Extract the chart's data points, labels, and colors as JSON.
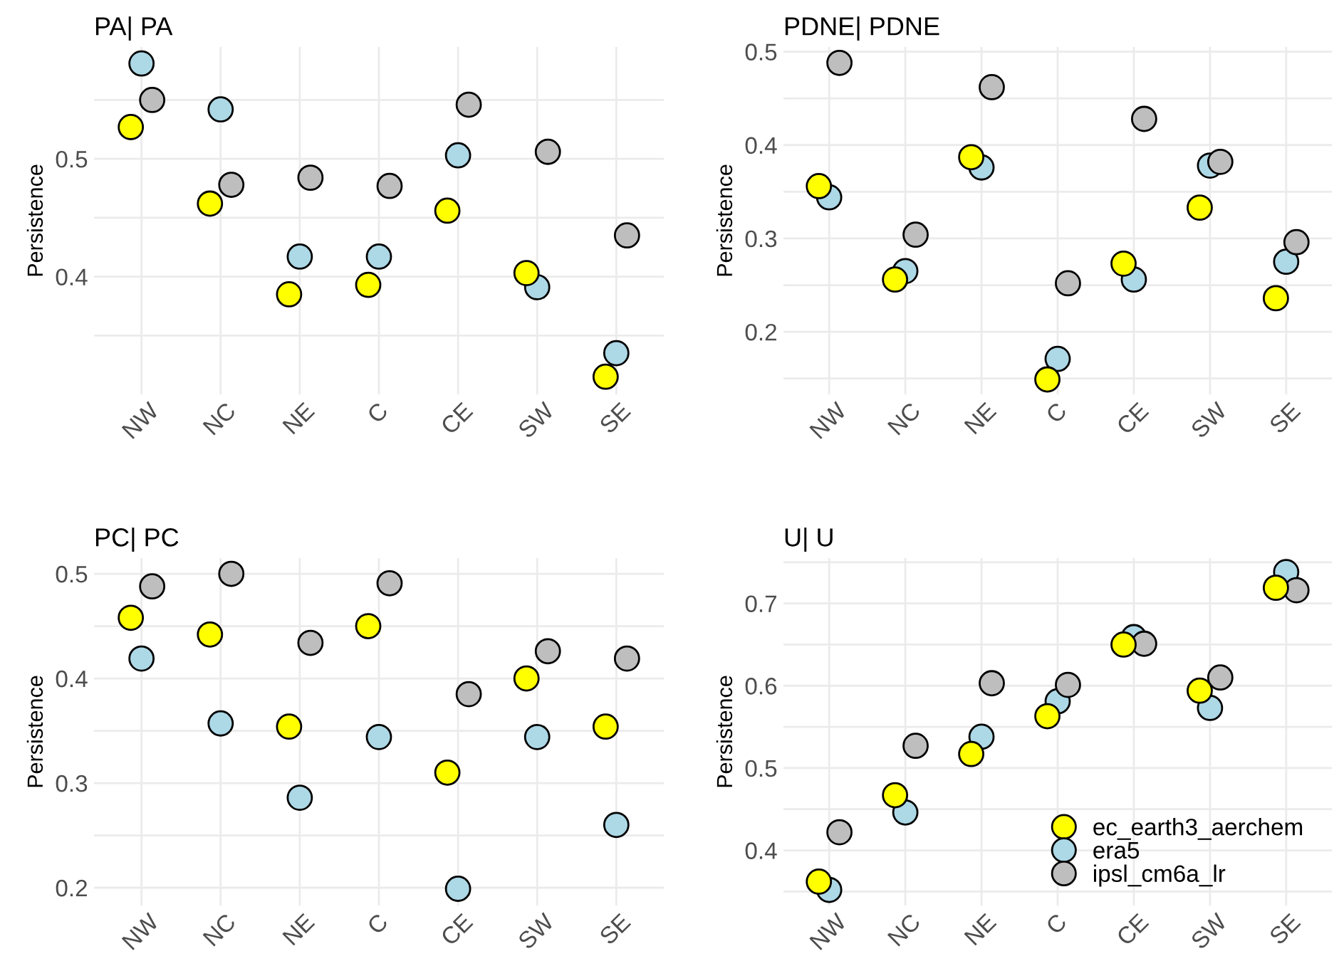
{
  "chart_data": [
    {
      "type": "scatter",
      "title": "PA| PA",
      "ylabel": "Persistence",
      "categories": [
        "NW",
        "NC",
        "NE",
        "C",
        "CE",
        "SW",
        "SE"
      ],
      "ylim": [
        0.3,
        0.595
      ],
      "yticks": [
        {
          "value": 0.35,
          "label": null
        },
        0.4,
        {
          "value": 0.45,
          "label": null
        },
        0.5,
        {
          "value": 0.55,
          "label": null
        }
      ],
      "grid": true,
      "marker": "circle",
      "legend": false,
      "series": [
        {
          "color": "#ffff00",
          "values": [
            0.527,
            0.462,
            0.385,
            0.393,
            0.456,
            0.403,
            0.315
          ]
        },
        {
          "color": "#add8e6",
          "values": [
            0.581,
            0.542,
            0.417,
            0.417,
            0.503,
            0.391,
            0.335
          ]
        },
        {
          "color": "#bebebe",
          "values": [
            0.55,
            0.478,
            0.484,
            0.477,
            0.546,
            0.506,
            0.435
          ]
        }
      ]
    },
    {
      "type": "scatter",
      "title": "PDNE| PDNE",
      "ylabel": "Persistence",
      "categories": [
        "NW",
        "NC",
        "NE",
        "C",
        "CE",
        "SW",
        "SE"
      ],
      "ylim": [
        0.133,
        0.505
      ],
      "yticks": [
        {
          "value": 0.15,
          "label": null
        },
        0.2,
        {
          "value": 0.25,
          "label": null
        },
        0.3,
        {
          "value": 0.35,
          "label": null
        },
        0.4,
        {
          "value": 0.45,
          "label": null
        },
        0.5
      ],
      "grid": true,
      "marker": "circle",
      "legend": false,
      "series": [
        {
          "color": "#ffff00",
          "values": [
            0.356,
            0.256,
            0.387,
            0.149,
            0.273,
            0.333,
            0.236
          ]
        },
        {
          "color": "#add8e6",
          "values": [
            0.344,
            0.265,
            0.376,
            0.171,
            0.256,
            0.378,
            0.275
          ]
        },
        {
          "color": "#bebebe",
          "values": [
            0.488,
            0.304,
            0.462,
            0.252,
            0.428,
            0.382,
            0.296
          ]
        }
      ]
    },
    {
      "type": "scatter",
      "title": "PC| PC",
      "ylabel": "Persistence",
      "categories": [
        "NW",
        "NC",
        "NE",
        "C",
        "CE",
        "SW",
        "SE"
      ],
      "ylim": [
        0.183,
        0.515
      ],
      "yticks": [
        0.2,
        {
          "value": 0.25,
          "label": null
        },
        0.3,
        {
          "value": 0.35,
          "label": null
        },
        0.4,
        {
          "value": 0.45,
          "label": null
        },
        0.5
      ],
      "grid": true,
      "marker": "circle",
      "legend": false,
      "series": [
        {
          "color": "#ffff00",
          "values": [
            0.458,
            0.442,
            0.354,
            0.45,
            0.31,
            0.4,
            0.354
          ]
        },
        {
          "color": "#add8e6",
          "values": [
            0.419,
            0.357,
            0.286,
            0.344,
            0.199,
            0.344,
            0.26
          ]
        },
        {
          "color": "#bebebe",
          "values": [
            0.488,
            0.5,
            0.434,
            0.491,
            0.385,
            0.426,
            0.419
          ]
        }
      ]
    },
    {
      "type": "scatter",
      "title": "U| U",
      "ylabel": "Persistence",
      "categories": [
        "NW",
        "NC",
        "NE",
        "C",
        "CE",
        "SW",
        "SE"
      ],
      "ylim": [
        0.333,
        0.755
      ],
      "yticks": [
        {
          "value": 0.35,
          "label": null
        },
        0.4,
        {
          "value": 0.45,
          "label": null
        },
        0.5,
        {
          "value": 0.55,
          "label": null
        },
        0.6,
        {
          "value": 0.65,
          "label": null
        },
        0.7,
        {
          "value": 0.75,
          "label": null
        }
      ],
      "grid": true,
      "marker": "circle",
      "legend": "bottom right",
      "series": [
        {
          "name": "ec_earth3_aerchem",
          "color": "#ffff00",
          "values": [
            0.362,
            0.467,
            0.517,
            0.563,
            0.65,
            0.594,
            0.719
          ]
        },
        {
          "name": "era5",
          "color": "#add8e6",
          "values": [
            0.352,
            0.446,
            0.538,
            0.581,
            0.659,
            0.573,
            0.738
          ]
        },
        {
          "name": "ipsl_cm6a_lr",
          "color": "#bebebe",
          "values": [
            0.422,
            0.527,
            0.603,
            0.601,
            0.651,
            0.61,
            0.716
          ]
        }
      ]
    }
  ]
}
